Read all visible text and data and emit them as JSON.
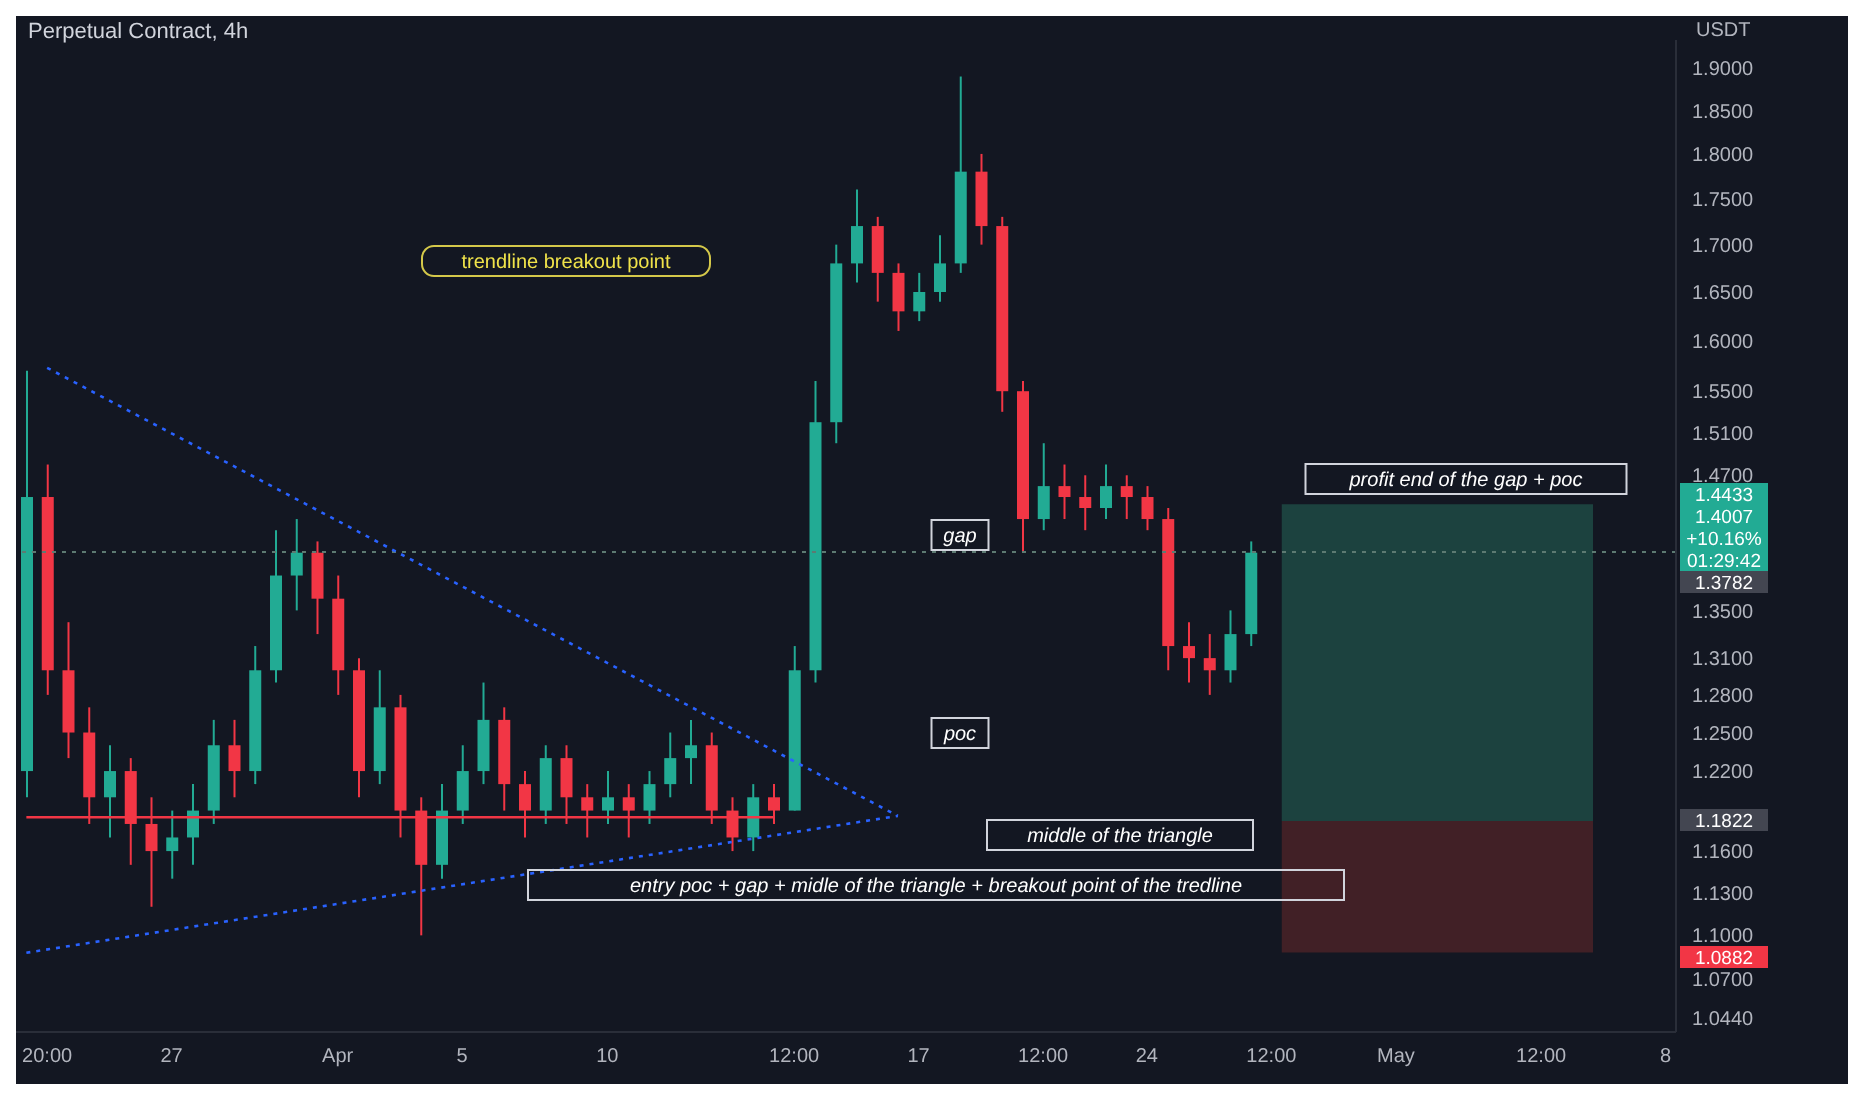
{
  "chart_data": {
    "type": "candlestick",
    "title": "Perpetual Contract, 4h",
    "ylabel": "USDT",
    "categories": [
      null,
      "20:00",
      null,
      null,
      null,
      null,
      null,
      "27",
      null,
      null,
      null,
      null,
      null,
      null,
      null,
      "Apr",
      null,
      null,
      null,
      null,
      null,
      "5",
      null,
      null,
      null,
      null,
      null,
      null,
      "10",
      null,
      null,
      null,
      null,
      null,
      null,
      null,
      null,
      "12:00",
      null,
      null,
      null,
      null,
      null,
      "17",
      null,
      null,
      null,
      null,
      null,
      "12:00",
      null,
      null,
      null,
      null,
      "24",
      null,
      null,
      null,
      null,
      null,
      "12:00",
      null,
      null,
      null,
      null,
      null,
      "May",
      null,
      null,
      null,
      null,
      null,
      null,
      "12:00",
      null,
      null,
      null,
      null,
      null,
      "8"
    ],
    "ohlc": [
      [
        1.22,
        1.57,
        1.2,
        1.45
      ],
      [
        1.45,
        1.48,
        1.28,
        1.3
      ],
      [
        1.3,
        1.34,
        1.23,
        1.25
      ],
      [
        1.25,
        1.27,
        1.18,
        1.2
      ],
      [
        1.2,
        1.24,
        1.17,
        1.22
      ],
      [
        1.22,
        1.23,
        1.15,
        1.18
      ],
      [
        1.18,
        1.2,
        1.12,
        1.16
      ],
      [
        1.16,
        1.19,
        1.14,
        1.17
      ],
      [
        1.17,
        1.21,
        1.15,
        1.19
      ],
      [
        1.19,
        1.26,
        1.18,
        1.24
      ],
      [
        1.24,
        1.26,
        1.2,
        1.22
      ],
      [
        1.22,
        1.32,
        1.21,
        1.3
      ],
      [
        1.3,
        1.42,
        1.29,
        1.38
      ],
      [
        1.38,
        1.43,
        1.35,
        1.4
      ],
      [
        1.4,
        1.41,
        1.33,
        1.36
      ],
      [
        1.36,
        1.38,
        1.28,
        1.3
      ],
      [
        1.3,
        1.31,
        1.2,
        1.22
      ],
      [
        1.22,
        1.3,
        1.21,
        1.27
      ],
      [
        1.27,
        1.28,
        1.17,
        1.19
      ],
      [
        1.19,
        1.2,
        1.1,
        1.15
      ],
      [
        1.15,
        1.21,
        1.14,
        1.19
      ],
      [
        1.19,
        1.24,
        1.18,
        1.22
      ],
      [
        1.22,
        1.29,
        1.21,
        1.26
      ],
      [
        1.26,
        1.27,
        1.19,
        1.21
      ],
      [
        1.21,
        1.22,
        1.17,
        1.19
      ],
      [
        1.19,
        1.24,
        1.18,
        1.23
      ],
      [
        1.23,
        1.24,
        1.18,
        1.2
      ],
      [
        1.2,
        1.21,
        1.17,
        1.19
      ],
      [
        1.19,
        1.22,
        1.18,
        1.2
      ],
      [
        1.2,
        1.21,
        1.17,
        1.19
      ],
      [
        1.19,
        1.22,
        1.18,
        1.21
      ],
      [
        1.21,
        1.25,
        1.2,
        1.23
      ],
      [
        1.23,
        1.26,
        1.21,
        1.24
      ],
      [
        1.24,
        1.25,
        1.18,
        1.19
      ],
      [
        1.19,
        1.2,
        1.16,
        1.17
      ],
      [
        1.17,
        1.21,
        1.16,
        1.2
      ],
      [
        1.2,
        1.21,
        1.18,
        1.19
      ],
      [
        1.19,
        1.32,
        1.19,
        1.3
      ],
      [
        1.3,
        1.56,
        1.29,
        1.52
      ],
      [
        1.52,
        1.7,
        1.5,
        1.68
      ],
      [
        1.68,
        1.76,
        1.66,
        1.72
      ],
      [
        1.72,
        1.73,
        1.64,
        1.67
      ],
      [
        1.67,
        1.68,
        1.61,
        1.63
      ],
      [
        1.63,
        1.67,
        1.62,
        1.65
      ],
      [
        1.65,
        1.71,
        1.64,
        1.68
      ],
      [
        1.68,
        1.89,
        1.67,
        1.78
      ],
      [
        1.78,
        1.8,
        1.7,
        1.72
      ],
      [
        1.72,
        1.73,
        1.53,
        1.55
      ],
      [
        1.55,
        1.56,
        1.4,
        1.43
      ],
      [
        1.43,
        1.5,
        1.42,
        1.46
      ],
      [
        1.46,
        1.48,
        1.43,
        1.45
      ],
      [
        1.45,
        1.47,
        1.42,
        1.44
      ],
      [
        1.44,
        1.48,
        1.43,
        1.46
      ],
      [
        1.46,
        1.47,
        1.43,
        1.45
      ],
      [
        1.45,
        1.46,
        1.42,
        1.43
      ],
      [
        1.43,
        1.44,
        1.3,
        1.32
      ],
      [
        1.32,
        1.34,
        1.29,
        1.31
      ],
      [
        1.31,
        1.33,
        1.28,
        1.3
      ],
      [
        1.3,
        1.35,
        1.29,
        1.33
      ],
      [
        1.33,
        1.41,
        1.32,
        1.4
      ],
      null,
      null,
      null,
      null,
      null,
      null,
      null,
      null,
      null,
      null,
      null,
      null,
      null,
      null,
      null,
      null,
      null,
      null,
      null,
      null
    ],
    "colors": [
      "#22ab94",
      "#f23645",
      "#f23645",
      "#f23645",
      "#22ab94",
      "#f23645",
      "#f23645",
      "#22ab94",
      "#22ab94",
      "#22ab94",
      "#f23645",
      "#22ab94",
      "#22ab94",
      "#22ab94",
      "#f23645",
      "#f23645",
      "#f23645",
      "#22ab94",
      "#f23645",
      "#f23645",
      "#22ab94",
      "#22ab94",
      "#22ab94",
      "#f23645",
      "#f23645",
      "#22ab94",
      "#f23645",
      "#f23645",
      "#22ab94",
      "#f23645",
      "#22ab94",
      "#22ab94",
      "#22ab94",
      "#f23645",
      "#f23645",
      "#22ab94",
      "#f23645",
      "#22ab94",
      "#22ab94",
      "#22ab94",
      "#22ab94",
      "#f23645",
      "#f23645",
      "#22ab94",
      "#22ab94",
      "#22ab94",
      "#f23645",
      "#f23645",
      "#f23645",
      "#22ab94",
      "#f23645",
      "#f23645",
      "#22ab94",
      "#f23645",
      "#f23645",
      "#f23645",
      "#f23645",
      "#f23645",
      "#22ab94",
      "#22ab94",
      null,
      null,
      null,
      null,
      null,
      null,
      null,
      null,
      null,
      null,
      null,
      null,
      null,
      null,
      null,
      null,
      null,
      null,
      null,
      null
    ],
    "series": [
      {
        "type": "line",
        "color": "#2962ff",
        "line_style": "dotted",
        "values": [
          null,
          1.573,
          null,
          null,
          null,
          null,
          null,
          null,
          null,
          null,
          null,
          null,
          null,
          null,
          null,
          null,
          null,
          null,
          null,
          null,
          null,
          null,
          null,
          null,
          null,
          null,
          null,
          null,
          null,
          null,
          null,
          null,
          null,
          null,
          null,
          null,
          null,
          null,
          null,
          null,
          null,
          null,
          1.186,
          null,
          null,
          null,
          null,
          null,
          null,
          null,
          null,
          null,
          null,
          null,
          null,
          null,
          null,
          null,
          null,
          null,
          null,
          null,
          null,
          null,
          null,
          null,
          null,
          null,
          null,
          null,
          null,
          null,
          null,
          null,
          null,
          null,
          null,
          null,
          null,
          null
        ]
      },
      {
        "type": "line",
        "color": "#2962ff",
        "line_style": "dotted",
        "values": [
          1.088,
          null,
          null,
          null,
          null,
          null,
          null,
          null,
          null,
          null,
          null,
          null,
          null,
          null,
          null,
          null,
          null,
          null,
          null,
          null,
          null,
          null,
          null,
          null,
          null,
          null,
          null,
          null,
          null,
          null,
          null,
          null,
          null,
          null,
          null,
          null,
          null,
          null,
          null,
          null,
          null,
          null,
          1.186,
          null,
          null,
          null,
          null,
          null,
          null,
          null,
          null,
          null,
          null,
          null,
          null,
          null,
          null,
          null,
          null,
          null,
          null,
          null,
          null,
          null,
          null,
          null,
          null,
          null,
          null,
          null,
          null,
          null,
          null,
          null,
          null,
          null,
          null,
          null,
          null,
          null
        ]
      },
      {
        "type": "line",
        "color": "#f23645",
        "line_style": "solid",
        "values": [
          1.185,
          null,
          null,
          null,
          null,
          null,
          null,
          null,
          null,
          null,
          null,
          null,
          null,
          null,
          null,
          null,
          null,
          null,
          null,
          null,
          null,
          null,
          null,
          null,
          null,
          null,
          null,
          null,
          null,
          null,
          null,
          null,
          null,
          null,
          null,
          null,
          1.185,
          null,
          null,
          null,
          null,
          null,
          null,
          null,
          null,
          null,
          null,
          null,
          null,
          null,
          null,
          null,
          null,
          null,
          null,
          null,
          null,
          null,
          null,
          null,
          null,
          null,
          null,
          null,
          null,
          null,
          null,
          null,
          null,
          null,
          null,
          null,
          null,
          null,
          null,
          null,
          null,
          null,
          null,
          null
        ]
      }
    ],
    "ref_lines": [
      {
        "axis": "y",
        "value": 1.4007,
        "color": "#5d7a72",
        "line_style": "dotted"
      }
    ],
    "bands": [
      {
        "axis": "y",
        "from": 1.1822,
        "to": 1.4433,
        "color": "#1e4a44"
      },
      {
        "axis": "y",
        "from": 1.0882,
        "to": 1.1822,
        "color": "#4a2227"
      }
    ],
    "annotations": [
      "trendline breakout point",
      "gap",
      "poc",
      "middle of the triangle",
      "entry poc + gap + midle of the triangle + breakout point of the tredline",
      "profit end of the gap + poc",
      "1.4433",
      "1.4007",
      "+10.16%",
      "01:29:42",
      "1.3782",
      "1.1822",
      "1.0882"
    ],
    "log": "y",
    "ylim": [
      1.035,
      1.934
    ],
    "yticks": [
      {
        "value": 1.044,
        "label": "1.0440"
      },
      {
        "value": 1.07,
        "label": "1.0700"
      },
      {
        "value": 1.1,
        "label": "1.1000"
      },
      {
        "value": 1.13,
        "label": "1.1300"
      },
      {
        "value": 1.16,
        "label": "1.1600"
      },
      {
        "value": 1.22,
        "label": "1.2200"
      },
      {
        "value": 1.25,
        "label": "1.2500"
      },
      {
        "value": 1.28,
        "label": "1.2800"
      },
      {
        "value": 1.31,
        "label": "1.3100"
      },
      {
        "value": 1.35,
        "label": "1.3500"
      },
      {
        "value": 1.47,
        "label": "1.4700"
      },
      {
        "value": 1.51,
        "label": "1.5100"
      },
      {
        "value": 1.55,
        "label": "1.5500"
      },
      {
        "value": 1.6,
        "label": "1.6000"
      },
      {
        "value": 1.65,
        "label": "1.6500"
      },
      {
        "value": 1.7,
        "label": "1.7000"
      },
      {
        "value": 1.75,
        "label": "1.7500"
      },
      {
        "value": 1.8,
        "label": "1.8000"
      },
      {
        "value": 1.85,
        "label": "1.8500"
      },
      {
        "value": 1.9,
        "label": "1.9000"
      }
    ]
  }
}
